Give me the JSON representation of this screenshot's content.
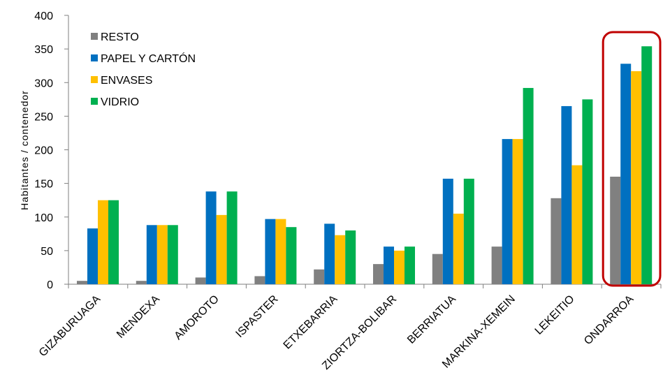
{
  "chart_data": {
    "type": "bar",
    "ylabel": "Habitantes / contenedor",
    "ylim": [
      0,
      400
    ],
    "yticks": [
      0,
      50,
      100,
      150,
      200,
      250,
      300,
      350,
      400
    ],
    "grid": false,
    "legend_position": "top-left",
    "categories": [
      "GIZABURUAGA",
      "MENDEXA",
      "AMOROTO",
      "ISPASTER",
      "ETXEBARRIA",
      "ZIORTZA-BOLIBAR",
      "BERRIATUA",
      "MARKINA-XEMEIN",
      "LEKEITIO",
      "ONDARROA"
    ],
    "series": [
      {
        "name": "RESTO",
        "color": "#808080",
        "values": [
          5,
          5,
          10,
          12,
          22,
          30,
          45,
          56,
          128,
          160
        ]
      },
      {
        "name": "PAPEL Y CARTÓN",
        "color": "#0070C0",
        "values": [
          83,
          88,
          138,
          97,
          90,
          56,
          157,
          216,
          265,
          328
        ]
      },
      {
        "name": "ENVASES",
        "color": "#FFC000",
        "values": [
          125,
          88,
          103,
          97,
          73,
          50,
          105,
          216,
          177,
          317
        ]
      },
      {
        "name": "VIDRIO",
        "color": "#00B050",
        "values": [
          125,
          88,
          138,
          85,
          80,
          56,
          157,
          292,
          275,
          354
        ]
      }
    ],
    "highlight": {
      "category": "ONDARROA",
      "color": "#C00000"
    }
  }
}
